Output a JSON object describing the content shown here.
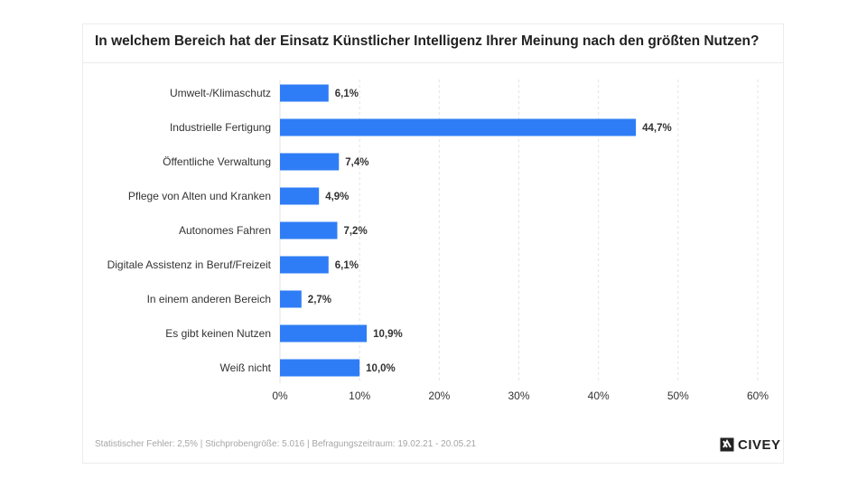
{
  "title": "In welchem Bereich hat der Einsatz Künstlicher Intelligenz Ihrer Meinung nach den größten Nutzen?",
  "footer": "Statistischer Fehler: 2,5% | Stichprobengröße: 5.016 | Befragungszeitraum: 19.02.21 - 20.05.21",
  "logo": {
    "text": "CIVEY",
    "icon": "civey-logo-icon"
  },
  "colors": {
    "bar": "#2f7df6",
    "grid": "#e3e3e3"
  },
  "chart_data": {
    "type": "bar",
    "orientation": "horizontal",
    "categories": [
      "Umwelt-/Klimaschutz",
      "Industrielle Fertigung",
      "Öffentliche Verwaltung",
      "Pflege von Alten und Kranken",
      "Autonomes Fahren",
      "Digitale Assistenz in Beruf/Freizeit",
      "In einem anderen Bereich",
      "Es gibt keinen Nutzen",
      "Weiß nicht"
    ],
    "values": [
      6.1,
      44.7,
      7.4,
      4.9,
      7.2,
      6.1,
      2.7,
      10.9,
      10.0
    ],
    "value_labels": [
      "6,1%",
      "44,7%",
      "7,4%",
      "4,9%",
      "7,2%",
      "6,1%",
      "2,7%",
      "10,9%",
      "10,0%"
    ],
    "xlim": [
      0,
      60
    ],
    "xticks": [
      0,
      10,
      20,
      30,
      40,
      50,
      60
    ],
    "xtick_labels": [
      "0%",
      "10%",
      "20%",
      "30%",
      "40%",
      "50%",
      "60%"
    ],
    "grid": "vertical dashed"
  }
}
